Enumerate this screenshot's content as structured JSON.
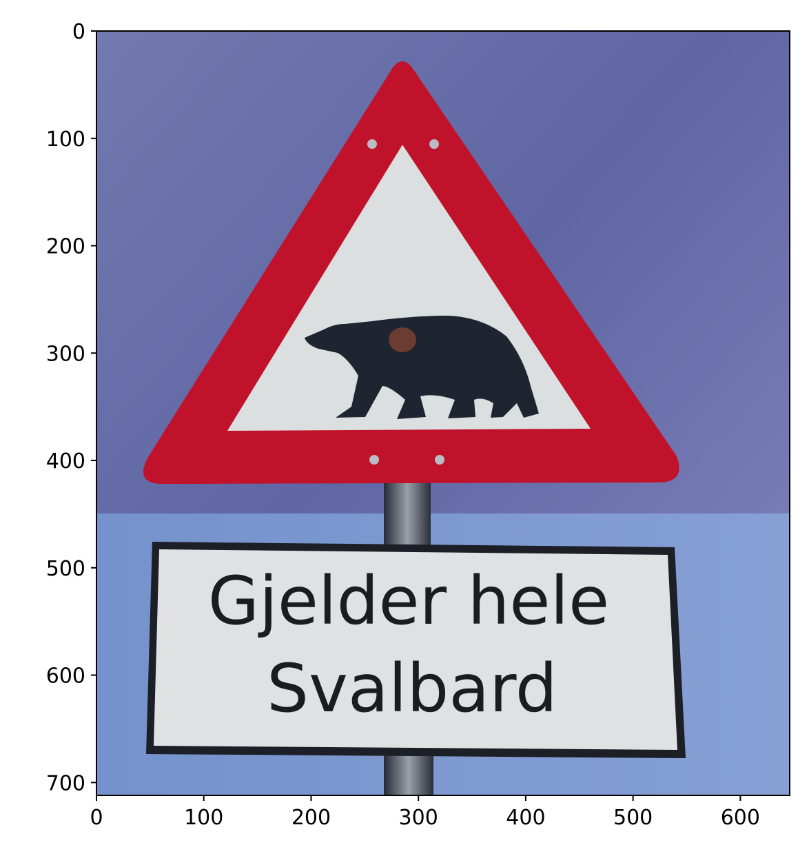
{
  "image": {
    "type": "image-axes",
    "x_ticks": [
      "0",
      "100",
      "200",
      "300",
      "400",
      "500",
      "600"
    ],
    "y_ticks": [
      "0",
      "100",
      "200",
      "300",
      "400",
      "500",
      "600",
      "700"
    ],
    "xlim": [
      0,
      646
    ],
    "ylim": [
      712,
      0
    ],
    "grid": false
  },
  "sign": {
    "line1": "Gjelder hele",
    "line2": "Svalbard"
  },
  "colors": {
    "sky_top": "#6a6fa6",
    "sky_right": "#8a88bd",
    "sky_bottom": "#7f9cd2",
    "triangle_red": "#c0122b",
    "plate_white": "#dfe1e2",
    "bear": "#1e2530",
    "pole": "#2f3340"
  }
}
